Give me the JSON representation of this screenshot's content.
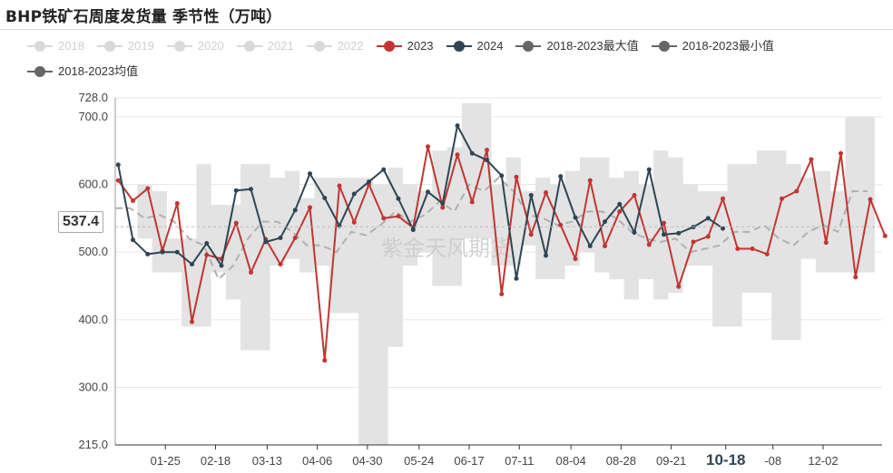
{
  "title": "BHP铁矿石周度发货量 季节性（万吨）",
  "watermark": "紫金天风期货",
  "pointer_value": "537.4",
  "chart_data": {
    "type": "line",
    "title": "BHP铁矿石周度发货量 季节性（万吨）",
    "ylim": [
      215.0,
      728.0
    ],
    "ytick_labels": [
      "728.0",
      "700.0",
      "600.0",
      "500.0",
      "400.0",
      "300.0",
      "215.0"
    ],
    "ytick_values": [
      728,
      700,
      600,
      500,
      400,
      300,
      215
    ],
    "xtick_labels": [
      "01-25",
      "02-18",
      "03-13",
      "04-06",
      "04-30",
      "05-24",
      "06-17",
      "07-11",
      "08-04",
      "08-28",
      "09-21",
      "10-18",
      "-08",
      "12-02"
    ],
    "xtick_weeks": [
      3.4,
      6.8,
      10.3,
      13.7,
      17.1,
      20.6,
      24.0,
      27.4,
      30.9,
      34.3,
      37.7,
      41.4,
      44.6,
      48.0
    ],
    "highlight_tick": "10-18",
    "grid": true,
    "legend_position": "top",
    "legend": [
      {
        "name": "2018",
        "color": "#cccccc",
        "visible": false
      },
      {
        "name": "2019",
        "color": "#cccccc",
        "visible": false
      },
      {
        "name": "2020",
        "color": "#cccccc",
        "visible": false
      },
      {
        "name": "2021",
        "color": "#cccccc",
        "visible": false
      },
      {
        "name": "2022",
        "color": "#cccccc",
        "visible": false
      },
      {
        "name": "2023",
        "color": "#c23531",
        "visible": true
      },
      {
        "name": "2024",
        "color": "#2f4554",
        "visible": true
      },
      {
        "name": "2018-2023最大值",
        "color": "#666666",
        "visible": true
      },
      {
        "name": "2018-2023最小值",
        "color": "#666666",
        "visible": true
      },
      {
        "name": "2018-2023均值",
        "color": "#666666",
        "visible": true
      }
    ],
    "band": {
      "max": [
        565,
        565,
        600,
        590,
        520,
        520,
        630,
        570,
        570,
        630,
        630,
        610,
        620,
        580,
        610,
        610,
        610,
        610,
        600,
        625,
        600,
        590,
        650,
        655,
        720,
        720,
        600,
        640,
        590,
        610,
        600,
        620,
        640,
        640,
        610,
        620,
        600,
        650,
        640,
        600,
        590,
        590,
        630,
        630,
        650,
        650,
        630,
        610,
        620,
        590,
        700,
        700
      ],
      "min": [
        565,
        565,
        520,
        470,
        470,
        390,
        390,
        470,
        430,
        355,
        355,
        480,
        490,
        470,
        480,
        410,
        410,
        215,
        215,
        360,
        480,
        500,
        450,
        450,
        520,
        520,
        480,
        480,
        510,
        460,
        460,
        480,
        500,
        470,
        460,
        430,
        460,
        430,
        440,
        480,
        480,
        390,
        390,
        440,
        440,
        370,
        370,
        490,
        470,
        470,
        470,
        470
      ]
    },
    "mean": [
      565,
      565,
      550,
      555,
      545,
      520,
      510,
      460,
      480,
      520,
      545,
      545,
      530,
      510,
      510,
      500,
      530,
      525,
      540,
      560,
      545,
      555,
      575,
      560,
      600,
      590,
      610,
      590,
      555,
      550,
      540,
      545,
      560,
      560,
      550,
      530,
      520,
      515,
      520,
      500,
      505,
      510,
      530,
      530,
      540,
      520,
      510,
      530,
      540,
      530,
      590,
      590
    ],
    "series": [
      {
        "name": "2023",
        "color": "#c23531",
        "values": [
          606,
          576,
          594,
          502,
          572,
          397,
          496,
          490,
          543,
          470,
          519,
          482,
          521,
          566,
          340,
          598,
          544,
          600,
          550,
          553,
          536,
          656,
          566,
          644,
          574,
          651,
          438,
          611,
          526,
          588,
          540,
          490,
          606,
          509,
          560,
          584,
          511,
          543,
          449,
          515,
          523,
          579,
          505,
          505,
          497,
          579,
          590,
          637,
          514,
          646,
          463,
          578,
          524
        ]
      },
      {
        "name": "2024",
        "color": "#2f4554",
        "values": [
          629,
          518,
          497,
          500,
          500,
          482,
          513,
          480,
          591,
          593,
          515,
          521,
          562,
          616,
          580,
          539,
          586,
          604,
          622,
          579,
          533,
          589,
          572,
          687,
          646,
          636,
          613,
          461,
          584,
          495,
          612,
          551,
          509,
          545,
          571,
          529,
          622,
          526,
          528,
          537,
          550,
          535
        ]
      }
    ]
  }
}
